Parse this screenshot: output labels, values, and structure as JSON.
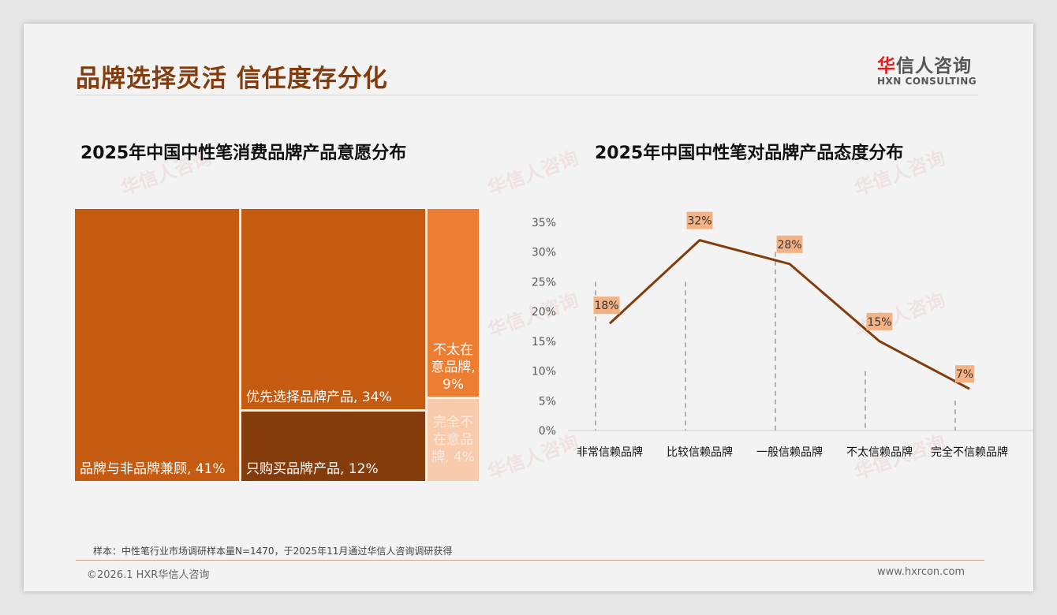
{
  "header": {
    "title": "品牌选择灵活 信任度存分化",
    "logo_cn_mark": "华",
    "logo_cn_rest": "信人咨询",
    "logo_en": "HXN CONSULTING"
  },
  "chart_data": [
    {
      "type": "treemap",
      "title": "2025年中国中性笔消费品牌产品意愿分布",
      "items": [
        {
          "label": "品牌与非品牌兼顾, 41%",
          "name": "品牌与非品牌兼顾",
          "value": 41,
          "color": "#c55a11"
        },
        {
          "label": "优先选择品牌产品, 34%",
          "name": "优先选择品牌产品",
          "value": 34,
          "color": "#c55a11"
        },
        {
          "label": "只购买品牌产品, 12%",
          "name": "只购买品牌产品",
          "value": 12,
          "color": "#843c0c"
        },
        {
          "label": "不太在意品牌, 9%",
          "name": "不太在意品牌",
          "value": 9,
          "color": "#ed7d31"
        },
        {
          "label": "完全不在意品牌, 4%",
          "name": "完全不在意品牌",
          "value": 4,
          "color": "#f8cbad"
        }
      ]
    },
    {
      "type": "line",
      "title": "2025年中国中性笔对品牌产品态度分布",
      "categories": [
        "非常信赖品牌",
        "比较信赖品牌",
        "一般信赖品牌",
        "不太信赖品牌",
        "完全不信赖品牌"
      ],
      "values": [
        18,
        32,
        28,
        15,
        7
      ],
      "labels": [
        "18%",
        "32%",
        "28%",
        "15%",
        "7%"
      ],
      "yticks": [
        "0%",
        "5%",
        "10%",
        "15%",
        "20%",
        "25%",
        "30%",
        "35%"
      ],
      "ylim": [
        0,
        35
      ],
      "line_color": "#843c0c",
      "label_bg": "#f4b183"
    }
  ],
  "footer": {
    "note": "样本：中性笔行业市场调研样本量N=1470，于2025年11月通过华信人咨询调研获得",
    "copyright": "©2026.1 HXR华信人咨询",
    "url": "www.hxrcon.com"
  },
  "watermark": "华信人咨询"
}
